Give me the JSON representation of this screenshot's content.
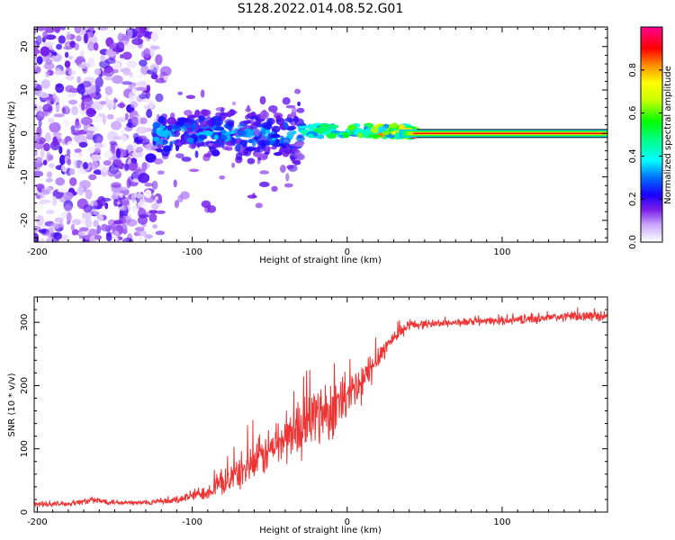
{
  "figure_title": "S128.2022.014.08.52.G01",
  "chart_data": [
    {
      "type": "heatmap",
      "title": "",
      "xlabel": "Height of straight line (km)",
      "ylabel": "Frequency (Hz)",
      "xlim": [
        -202,
        168
      ],
      "ylim": [
        -25,
        24.5
      ],
      "xticks": [
        -200,
        -100,
        0,
        100
      ],
      "yticks": [
        -20,
        -10,
        0,
        10,
        20
      ],
      "colorbar": {
        "label": "Normalized spectral amplitude",
        "range": [
          0,
          1
        ],
        "ticks": [
          0.0,
          0.2,
          0.4,
          0.6,
          0.8
        ]
      },
      "features": [
        {
          "name": "noise_region",
          "x_range": [
            -202,
            -116
          ],
          "f_range": [
            -25,
            24.5
          ],
          "amplitude_max": 0.2
        },
        {
          "name": "fragmented_region",
          "x_range": [
            -125,
            -30
          ],
          "f_range": [
            -18,
            10
          ],
          "amplitude_max": 0.35
        },
        {
          "name": "transition_region",
          "x_range": [
            -30,
            45
          ],
          "f_range": [
            -2,
            3
          ],
          "amplitude_max": 0.9
        },
        {
          "name": "direct_tone",
          "x_range": [
            45,
            168
          ],
          "f_center": 0,
          "amplitude": 1.0
        }
      ]
    },
    {
      "type": "line",
      "title": "",
      "xlabel": "Height of straight line (km)",
      "ylabel": "SNR (10 * v/v)",
      "xlim": [
        -202,
        168
      ],
      "ylim": [
        0,
        340
      ],
      "xticks": [
        -200,
        -100,
        0,
        100
      ],
      "yticks": [
        0,
        100,
        200,
        300
      ],
      "color": "#ee3333",
      "series": [
        {
          "name": "SNR",
          "x": [
            -202,
            -180,
            -165,
            -140,
            -115,
            -100,
            -90,
            -80,
            -70,
            -60,
            -50,
            -40,
            -30,
            -20,
            -10,
            0,
            10,
            20,
            30,
            40,
            60,
            80,
            100,
            120,
            140,
            168
          ],
          "mean": [
            12,
            13,
            18,
            14,
            16,
            25,
            32,
            45,
            60,
            75,
            95,
            115,
            130,
            150,
            160,
            175,
            200,
            245,
            275,
            295,
            298,
            300,
            302,
            305,
            308,
            310
          ],
          "noise": [
            5,
            5,
            7,
            5,
            6,
            12,
            16,
            25,
            35,
            40,
            45,
            55,
            60,
            70,
            60,
            55,
            45,
            25,
            15,
            10,
            8,
            8,
            8,
            10,
            10,
            10
          ]
        }
      ]
    }
  ]
}
